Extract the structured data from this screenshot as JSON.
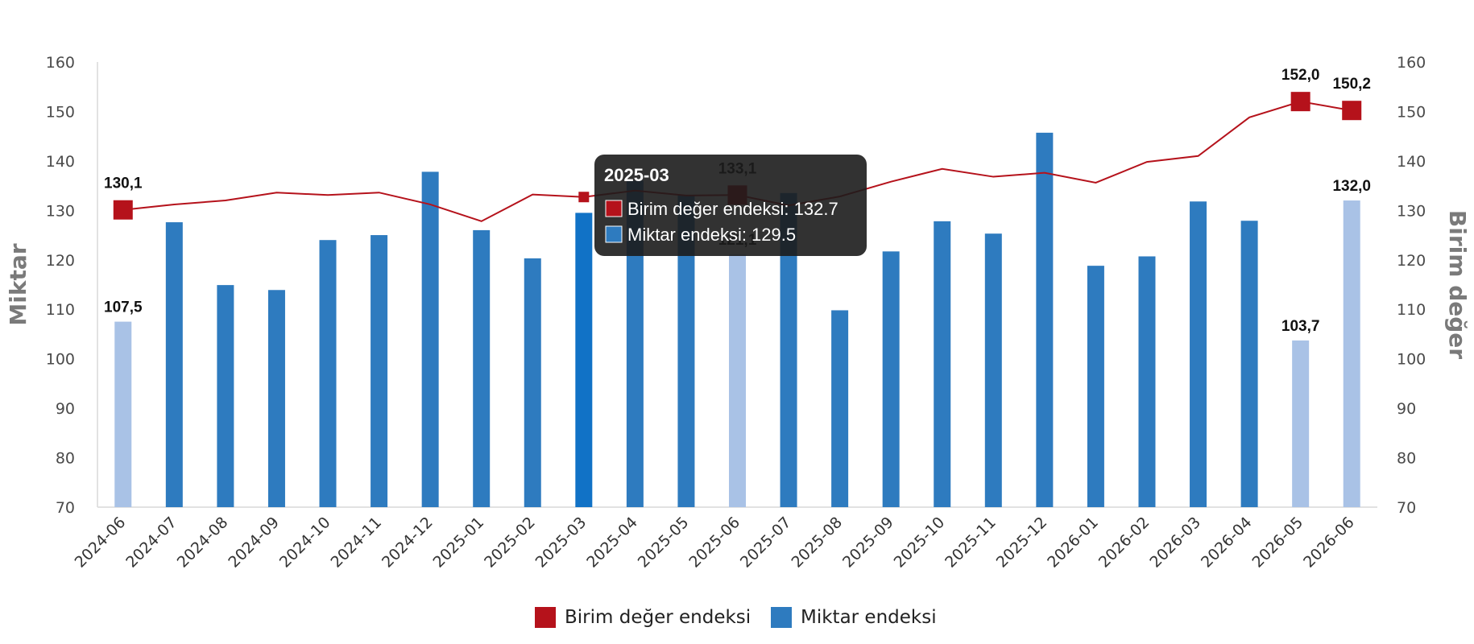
{
  "chart_data": {
    "type": "bar",
    "categories": [
      "2024-06",
      "2024-07",
      "2024-08",
      "2024-09",
      "2024-10",
      "2024-11",
      "2024-12",
      "2025-01",
      "2025-02",
      "2025-03",
      "2025-04",
      "2025-05",
      "2025-06",
      "2025-07",
      "2025-08",
      "2025-09",
      "2025-10",
      "2025-11",
      "2025-12",
      "2026-01",
      "2026-02",
      "2026-03",
      "2026-04",
      "2026-05",
      "2026-06"
    ],
    "series": [
      {
        "name": "Birim değer endeksi",
        "kind": "line",
        "axis": "right",
        "color": "#b5121b",
        "values": [
          130.1,
          131.2,
          132.0,
          133.6,
          133.1,
          133.6,
          131.2,
          127.8,
          133.2,
          132.7,
          134.0,
          133.0,
          133.1,
          131.0,
          132.8,
          135.8,
          138.4,
          136.8,
          137.6,
          135.6,
          139.8,
          141.0,
          148.8,
          152.0,
          150.2
        ],
        "highlight_markers": [
          0,
          12,
          23,
          24
        ],
        "data_labels": {
          "0": "130,1",
          "12": "133,1",
          "23": "152,0",
          "24": "150,2"
        }
      },
      {
        "name": "Miktar endeksi",
        "kind": "bar",
        "axis": "left",
        "color": "#2e7bbf",
        "values": [
          107.5,
          127.6,
          114.9,
          113.9,
          124.0,
          125.0,
          137.8,
          126.0,
          120.3,
          129.5,
          136.0,
          133.0,
          121.1,
          133.5,
          109.8,
          121.7,
          127.8,
          125.3,
          145.7,
          118.8,
          120.7,
          131.8,
          127.9,
          103.7,
          132.0
        ],
        "highlight_bars": [
          0,
          12,
          23,
          24
        ],
        "highlight_color": "#a9c2e6",
        "active_bar": 9,
        "active_color": "#1172c6",
        "data_labels": {
          "0": "107,5",
          "12": "121,1",
          "23": "103,7",
          "24": "132,0"
        }
      }
    ],
    "y_left": {
      "label": "Miktar",
      "ylim": [
        70,
        160
      ],
      "ticks": [
        70,
        80,
        90,
        100,
        110,
        120,
        130,
        140,
        150,
        160
      ]
    },
    "y_right": {
      "label": "Birim değer",
      "ylim": [
        70,
        160
      ],
      "ticks": [
        70,
        80,
        90,
        100,
        110,
        120,
        130,
        140,
        150,
        160
      ]
    },
    "grid": false,
    "legend_position": "bottom",
    "tooltip": {
      "category_index": 9,
      "title": "2025-03",
      "rows": [
        {
          "label": "Birim değer endeksi: 132.7",
          "color": "#b5121b"
        },
        {
          "label": "Miktar endeksi: 129.5",
          "color": "#2e7bbf"
        }
      ]
    }
  }
}
